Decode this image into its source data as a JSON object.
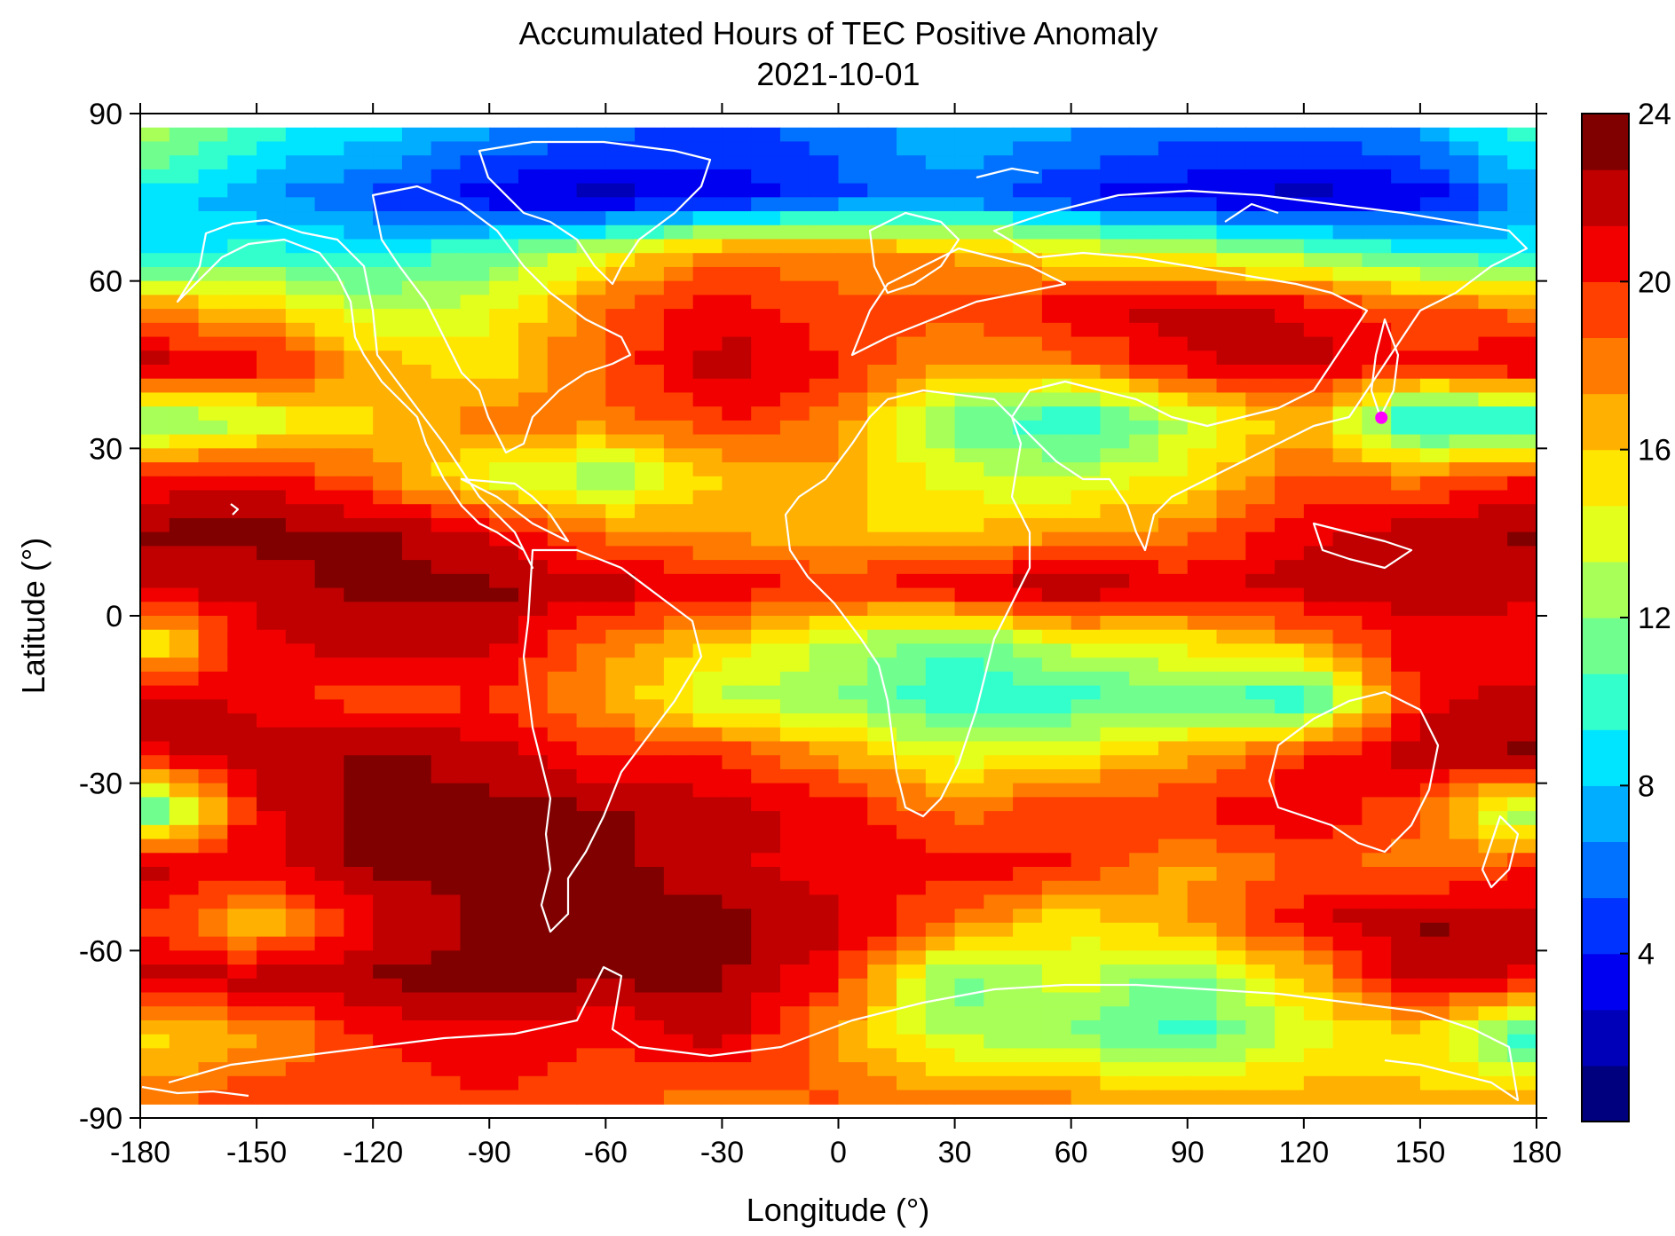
{
  "chart_data": {
    "type": "heatmap",
    "title": "Accumulated Hours of TEC Positive Anomaly",
    "subtitle": "2021-10-01",
    "xlabel": "Longitude (°)",
    "ylabel": "Latitude (°)",
    "xlim": [
      -180,
      180
    ],
    "ylim": [
      -90,
      90
    ],
    "x_ticks": [
      -180,
      -150,
      -120,
      -90,
      -60,
      -30,
      0,
      30,
      60,
      90,
      120,
      150,
      180
    ],
    "y_ticks": [
      90,
      60,
      30,
      0,
      -30,
      -60,
      -90
    ],
    "colorbar": {
      "min": 0,
      "max": 24,
      "ticks": [
        24,
        20,
        16,
        12,
        8,
        4
      ],
      "colors": [
        "#00007f",
        "#0000b8",
        "#0000f0",
        "#0033ff",
        "#0072ff",
        "#00adff",
        "#00e5ff",
        "#33ffcc",
        "#70ff8f",
        "#a8ff57",
        "#e3ff1c",
        "#ffe600",
        "#ffb000",
        "#ff7a00",
        "#ff4000",
        "#f20000",
        "#c00000",
        "#800000"
      ]
    },
    "grid": false,
    "legend": "colorbar-right",
    "lon_nodes": [
      -180,
      -150,
      -120,
      -90,
      -60,
      -30,
      0,
      30,
      60,
      90,
      120,
      150,
      180
    ],
    "lat_rows": [
      87.5,
      75,
      65,
      55,
      45,
      35,
      25,
      15,
      5,
      -5,
      -15,
      -25,
      -35,
      -45,
      -55,
      -65,
      -75,
      -87.5
    ],
    "values": [
      [
        13,
        10,
        9,
        7,
        6,
        5,
        6,
        8,
        7,
        6,
        6,
        7,
        11
      ],
      [
        9,
        7,
        5,
        3,
        2,
        3,
        5,
        6,
        4,
        3,
        2,
        3,
        7
      ],
      [
        8,
        10,
        9,
        11,
        14,
        18,
        18,
        17,
        15,
        14,
        12,
        10,
        9
      ],
      [
        18,
        16,
        13,
        14,
        19,
        21,
        19,
        19,
        21,
        22,
        21,
        19,
        18
      ],
      [
        22,
        21,
        17,
        15,
        19,
        22,
        20,
        17,
        18,
        21,
        22,
        20,
        22
      ],
      [
        11,
        13,
        16,
        18,
        18,
        20,
        18,
        11,
        9,
        13,
        17,
        8,
        9
      ],
      [
        20,
        21,
        18,
        14,
        12,
        16,
        17,
        14,
        13,
        15,
        19,
        18,
        20
      ],
      [
        23,
        23,
        23,
        21,
        18,
        17,
        16,
        16,
        17,
        18,
        21,
        22,
        23
      ],
      [
        22,
        22,
        23,
        23,
        22,
        21,
        20,
        21,
        23,
        21,
        22,
        22,
        22
      ],
      [
        14,
        21,
        22,
        22,
        18,
        16,
        13,
        11,
        14,
        15,
        17,
        21,
        20
      ],
      [
        22,
        21,
        19,
        20,
        17,
        13,
        12,
        9,
        10,
        11,
        9,
        21,
        22
      ],
      [
        21,
        22,
        23,
        22,
        20,
        20,
        17,
        14,
        15,
        17,
        20,
        22,
        23
      ],
      [
        9,
        21,
        23,
        23,
        23,
        22,
        21,
        18,
        20,
        20,
        21,
        19,
        11
      ],
      [
        22,
        21,
        23,
        23,
        23,
        22,
        20,
        21,
        20,
        17,
        19,
        18,
        20
      ],
      [
        20,
        16,
        21,
        23,
        23,
        23,
        22,
        18,
        15,
        17,
        21,
        23,
        22
      ],
      [
        22,
        22,
        23,
        23,
        23,
        23,
        20,
        11,
        14,
        11,
        16,
        22,
        21
      ],
      [
        15,
        17,
        20,
        21,
        20,
        22,
        17,
        13,
        12,
        10,
        14,
        16,
        9
      ],
      [
        18,
        20,
        19,
        20,
        19,
        18,
        19,
        18,
        18,
        17,
        17,
        16,
        17
      ]
    ],
    "annotations": [
      {
        "type": "marker",
        "lon": 140,
        "lat": 35.5,
        "color": "#ff00ff"
      }
    ],
    "overlay": "coastlines"
  }
}
